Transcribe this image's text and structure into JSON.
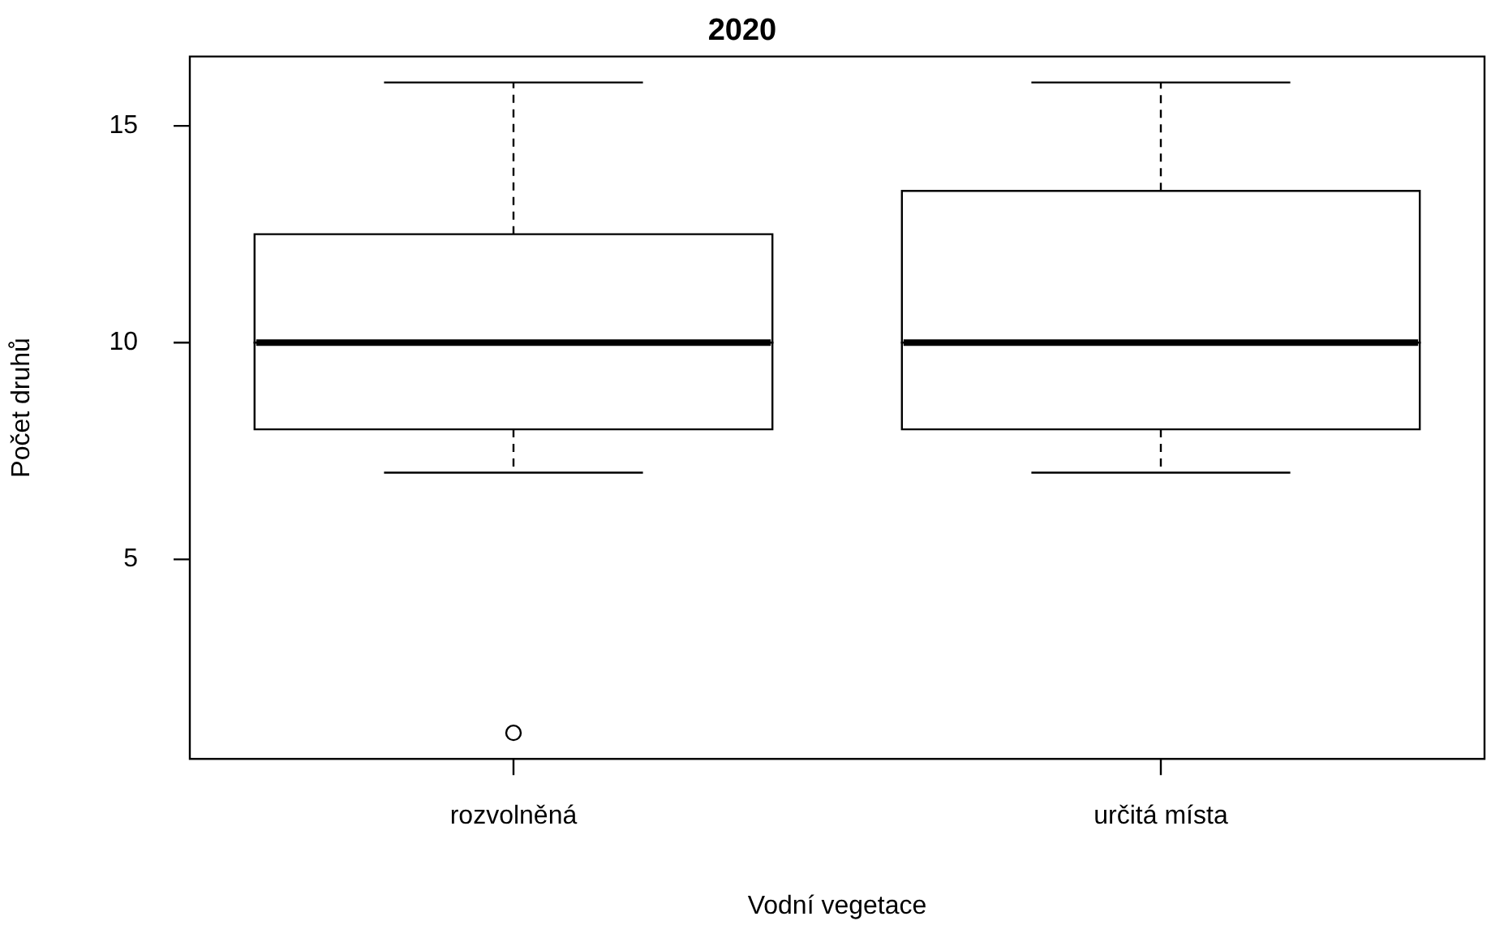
{
  "chart_data": {
    "type": "box",
    "title": "2020",
    "xlabel": "Vodní vegetace",
    "ylabel": "Počet druhů",
    "categories": [
      "rozvolněná",
      "určitá místa"
    ],
    "boxes": [
      {
        "low": 7,
        "q1": 8,
        "median": 10,
        "q3": 12.5,
        "high": 16,
        "outliers": [
          1
        ]
      },
      {
        "low": 7,
        "q1": 8,
        "median": 10,
        "q3": 13.5,
        "high": 16
      }
    ],
    "ylim": [
      0.4,
      16.6
    ],
    "yticks": [
      5,
      10,
      15
    ],
    "grid": false
  }
}
